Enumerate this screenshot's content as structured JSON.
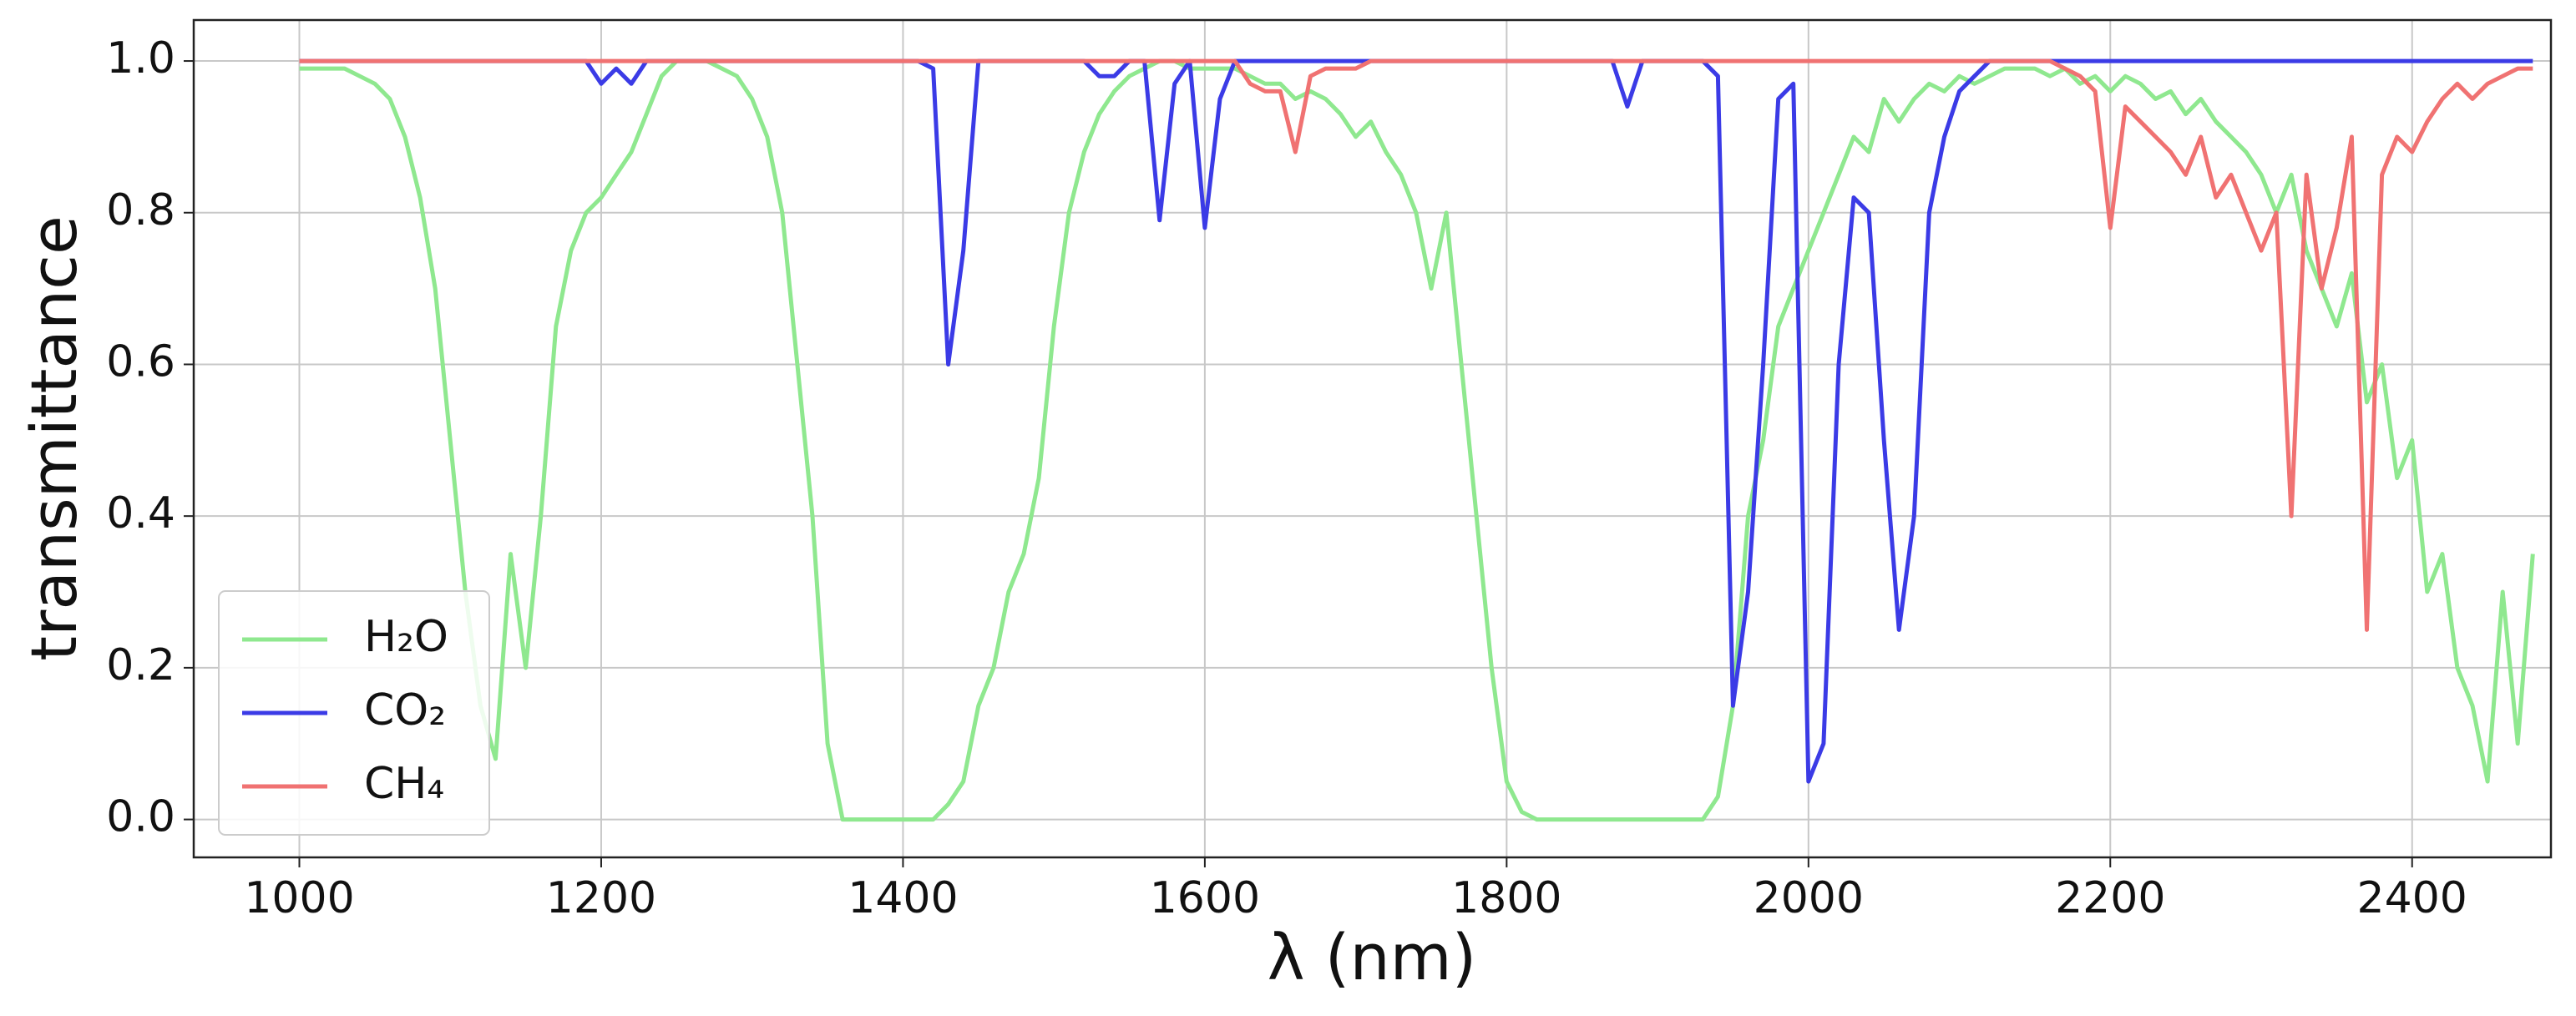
{
  "chart_data": {
    "type": "line",
    "x_label": "λ (nm)",
    "y_label": "transmittance",
    "x": [
      1000,
      1010,
      1020,
      1030,
      1040,
      1050,
      1060,
      1070,
      1080,
      1090,
      1100,
      1110,
      1120,
      1130,
      1140,
      1150,
      1160,
      1170,
      1180,
      1190,
      1200,
      1210,
      1220,
      1230,
      1240,
      1250,
      1260,
      1270,
      1280,
      1290,
      1300,
      1310,
      1320,
      1330,
      1340,
      1350,
      1360,
      1370,
      1380,
      1390,
      1400,
      1410,
      1420,
      1430,
      1440,
      1450,
      1460,
      1470,
      1480,
      1490,
      1500,
      1510,
      1520,
      1530,
      1540,
      1550,
      1560,
      1570,
      1580,
      1590,
      1600,
      1610,
      1620,
      1630,
      1640,
      1650,
      1660,
      1670,
      1680,
      1690,
      1700,
      1710,
      1720,
      1730,
      1740,
      1750,
      1760,
      1770,
      1780,
      1790,
      1800,
      1810,
      1820,
      1830,
      1840,
      1850,
      1860,
      1870,
      1880,
      1890,
      1900,
      1910,
      1920,
      1930,
      1940,
      1950,
      1960,
      1970,
      1980,
      1990,
      2000,
      2010,
      2020,
      2030,
      2040,
      2050,
      2060,
      2070,
      2080,
      2090,
      2100,
      2110,
      2120,
      2130,
      2140,
      2150,
      2160,
      2170,
      2180,
      2190,
      2200,
      2210,
      2220,
      2230,
      2240,
      2250,
      2260,
      2270,
      2280,
      2290,
      2300,
      2310,
      2320,
      2330,
      2340,
      2350,
      2360,
      2370,
      2380,
      2390,
      2400,
      2410,
      2420,
      2430,
      2440,
      2450,
      2460,
      2470,
      2480
    ],
    "series": [
      {
        "name": "H₂O",
        "color": "#8fe88f",
        "values": [
          0.99,
          0.99,
          0.99,
          0.99,
          0.98,
          0.97,
          0.95,
          0.9,
          0.82,
          0.7,
          0.5,
          0.3,
          0.15,
          0.08,
          0.35,
          0.2,
          0.4,
          0.65,
          0.75,
          0.8,
          0.82,
          0.85,
          0.88,
          0.93,
          0.98,
          1,
          1,
          1,
          0.99,
          0.98,
          0.95,
          0.9,
          0.8,
          0.6,
          0.4,
          0.1,
          0,
          0,
          0,
          0,
          0,
          0,
          0,
          0.02,
          0.05,
          0.15,
          0.2,
          0.3,
          0.35,
          0.45,
          0.65,
          0.8,
          0.88,
          0.93,
          0.96,
          0.98,
          0.99,
          1,
          1,
          0.99,
          0.99,
          0.99,
          0.99,
          0.98,
          0.97,
          0.97,
          0.95,
          0.96,
          0.95,
          0.93,
          0.9,
          0.92,
          0.88,
          0.85,
          0.8,
          0.7,
          0.8,
          0.6,
          0.4,
          0.2,
          0.05,
          0.01,
          0,
          0,
          0,
          0,
          0,
          0,
          0,
          0,
          0,
          0,
          0,
          0,
          0.03,
          0.15,
          0.4,
          0.5,
          0.65,
          0.7,
          0.75,
          0.8,
          0.85,
          0.9,
          0.88,
          0.95,
          0.92,
          0.95,
          0.97,
          0.96,
          0.98,
          0.97,
          0.98,
          0.99,
          0.99,
          0.99,
          0.98,
          0.99,
          0.97,
          0.98,
          0.96,
          0.98,
          0.97,
          0.95,
          0.96,
          0.93,
          0.95,
          0.92,
          0.9,
          0.88,
          0.85,
          0.8,
          0.85,
          0.75,
          0.7,
          0.65,
          0.72,
          0.55,
          0.6,
          0.45,
          0.5,
          0.3,
          0.35,
          0.2,
          0.15,
          0.05,
          0.3,
          0.1,
          0.35
        ]
      },
      {
        "name": "CO₂",
        "color": "#3b3be6",
        "values": [
          1,
          1,
          1,
          1,
          1,
          1,
          1,
          1,
          1,
          1,
          1,
          1,
          1,
          1,
          1,
          1,
          1,
          1,
          1,
          1,
          0.97,
          0.99,
          0.97,
          1,
          1,
          1,
          1,
          1,
          1,
          1,
          1,
          1,
          1,
          1,
          1,
          1,
          1,
          1,
          1,
          1,
          1,
          1,
          0.99,
          0.6,
          0.75,
          1,
          1,
          1,
          1,
          1,
          1,
          1,
          1,
          0.98,
          0.98,
          1,
          1,
          0.79,
          0.97,
          1,
          0.78,
          0.95,
          1,
          1,
          1,
          1,
          1,
          1,
          1,
          1,
          1,
          1,
          1,
          1,
          1,
          1,
          1,
          1,
          1,
          1,
          1,
          1,
          1,
          1,
          1,
          1,
          1,
          1,
          0.94,
          1,
          1,
          1,
          1,
          1,
          0.98,
          0.15,
          0.3,
          0.6,
          0.95,
          0.97,
          0.05,
          0.1,
          0.6,
          0.82,
          0.8,
          0.5,
          0.25,
          0.4,
          0.8,
          0.9,
          0.96,
          0.98,
          1,
          1,
          1,
          1,
          1,
          1,
          1,
          1,
          1,
          1,
          1,
          1,
          1,
          1,
          1,
          1,
          1,
          1,
          1,
          1,
          1,
          1,
          1,
          1,
          1,
          1,
          1,
          1,
          1,
          1,
          1,
          1,
          1,
          1,
          1,
          1,
          1
        ]
      },
      {
        "name": "CH₄",
        "color": "#f07272",
        "values": [
          1,
          1,
          1,
          1,
          1,
          1,
          1,
          1,
          1,
          1,
          1,
          1,
          1,
          1,
          1,
          1,
          1,
          1,
          1,
          1,
          1,
          1,
          1,
          1,
          1,
          1,
          1,
          1,
          1,
          1,
          1,
          1,
          1,
          1,
          1,
          1,
          1,
          1,
          1,
          1,
          1,
          1,
          1,
          1,
          1,
          1,
          1,
          1,
          1,
          1,
          1,
          1,
          1,
          1,
          1,
          1,
          1,
          1,
          1,
          1,
          1,
          1,
          1,
          0.97,
          0.96,
          0.96,
          0.88,
          0.98,
          0.99,
          0.99,
          0.99,
          1,
          1,
          1,
          1,
          1,
          1,
          1,
          1,
          1,
          1,
          1,
          1,
          1,
          1,
          1,
          1,
          1,
          1,
          1,
          1,
          1,
          1,
          1,
          1,
          1,
          1,
          1,
          1,
          1,
          1,
          1,
          1,
          1,
          1,
          1,
          1,
          1,
          1,
          1,
          1,
          1,
          1,
          1,
          1,
          1,
          1,
          0.99,
          0.98,
          0.96,
          0.78,
          0.94,
          0.92,
          0.9,
          0.88,
          0.85,
          0.9,
          0.82,
          0.85,
          0.8,
          0.75,
          0.8,
          0.4,
          0.85,
          0.7,
          0.78,
          0.9,
          0.25,
          0.85,
          0.9,
          0.88,
          0.92,
          0.95,
          0.97,
          0.95,
          0.97,
          0.98,
          0.99,
          0.99
        ]
      }
    ],
    "xlim": [
      930,
      2492
    ],
    "ylim": [
      -0.05,
      1.054
    ],
    "xticks": [
      1000,
      1200,
      1400,
      1600,
      1800,
      2000,
      2200,
      2400
    ],
    "yticks": [
      {
        "value": 0,
        "label": "0.0"
      },
      {
        "value": 0.2,
        "label": "0.2"
      },
      {
        "value": 0.4,
        "label": "0.4"
      },
      {
        "value": 0.6,
        "label": "0.6"
      },
      {
        "value": 0.8,
        "label": "0.8"
      },
      {
        "value": 1,
        "label": "1.0"
      }
    ],
    "grid": true,
    "legend": "lower left"
  }
}
